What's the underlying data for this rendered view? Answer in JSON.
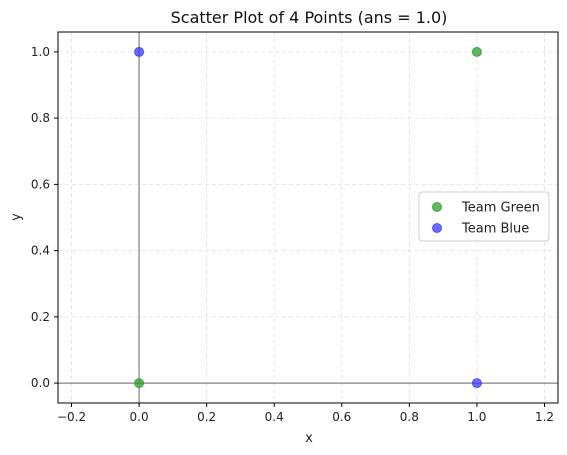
{
  "chart_data": {
    "type": "scatter",
    "title": "Scatter Plot of 4 Points (ans = 1.0)",
    "xlabel": "x",
    "ylabel": "y",
    "xlim": [
      -0.24,
      1.24
    ],
    "ylim": [
      -0.06,
      1.06
    ],
    "xticks": [
      -0.2,
      0.0,
      0.2,
      0.4,
      0.6,
      0.8,
      1.0,
      1.2
    ],
    "yticks": [
      0.0,
      0.2,
      0.4,
      0.6,
      0.8,
      1.0
    ],
    "xtick_labels": [
      "−0.2",
      "0.0",
      "0.2",
      "0.4",
      "0.6",
      "0.8",
      "1.0",
      "1.2"
    ],
    "ytick_labels": [
      "0.0",
      "0.2",
      "0.4",
      "0.6",
      "0.8",
      "1.0"
    ],
    "grid": true,
    "reference_lines": {
      "x": 0,
      "y": 0
    },
    "legend_position": "center-right",
    "series": [
      {
        "name": "Team Green",
        "color": "#2ca02c",
        "points": [
          {
            "x": 1.0,
            "y": 1.0
          },
          {
            "x": 0.0,
            "y": 0.0
          }
        ]
      },
      {
        "name": "Team Blue",
        "color": "#3a3aff",
        "points": [
          {
            "x": 0.0,
            "y": 1.0
          },
          {
            "x": 1.0,
            "y": 0.0
          }
        ]
      }
    ]
  }
}
